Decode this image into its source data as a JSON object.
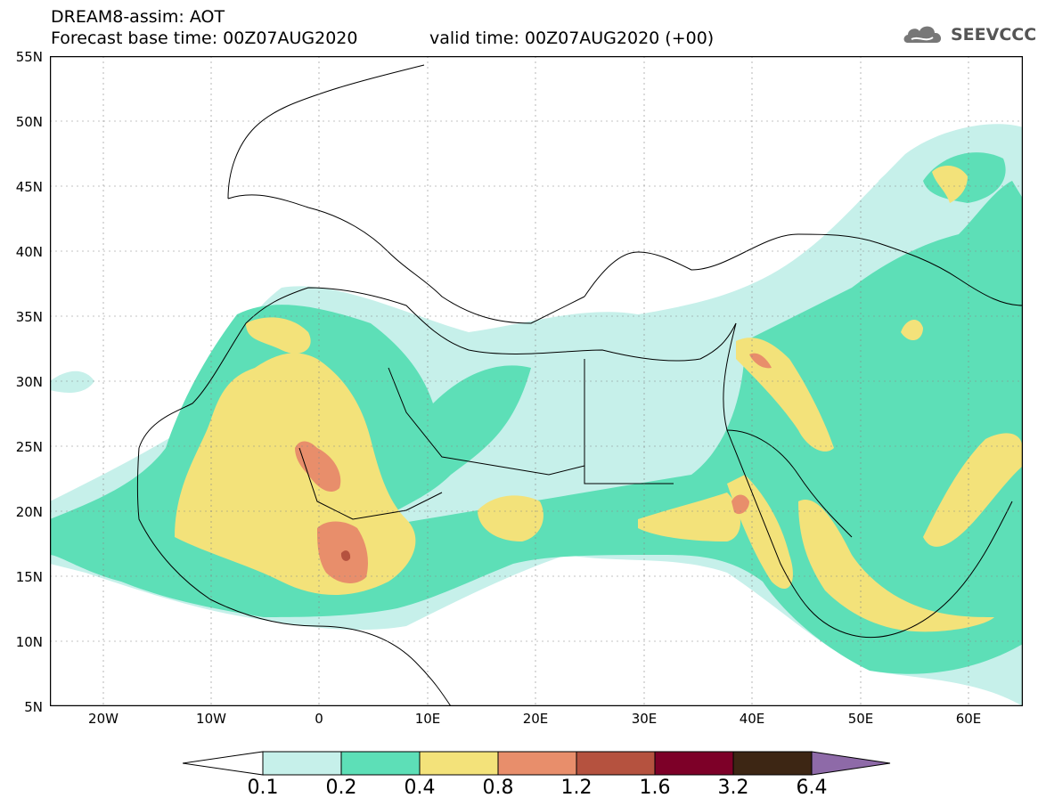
{
  "header": {
    "line1": "DREAM8-assim: AOT",
    "line2": "Forecast base time: 00Z07AUG2020",
    "valid": "valid time: 00Z07AUG2020 (+00)"
  },
  "logo": {
    "text": "SEEVCCC",
    "icon": "cloud-logo-icon"
  },
  "map": {
    "lat_labels": [
      "55N",
      "50N",
      "45N",
      "40N",
      "35N",
      "30N",
      "25N",
      "20N",
      "15N",
      "10N",
      "5N"
    ],
    "lon_labels": [
      "20W",
      "10W",
      "0",
      "10E",
      "20E",
      "30E",
      "40E",
      "50E",
      "60E"
    ],
    "region": "North Africa, Europe and Middle East",
    "grid": true
  },
  "colorbar": {
    "labels": [
      "0.1",
      "0.2",
      "0.4",
      "0.8",
      "1.2",
      "1.6",
      "3.2",
      "6.4"
    ],
    "colors": [
      "#ffffff",
      "#c6f0ea",
      "#5ddfb7",
      "#f3e27a",
      "#e88e6b",
      "#b5523f",
      "#7d0028",
      "#3d2614",
      "#8e6aa8"
    ]
  },
  "palette": {
    "c01": "#c6f0ea",
    "c02": "#5ddfb7",
    "c04": "#f3e27a",
    "c08": "#e88e6b",
    "c12": "#b5523f"
  }
}
